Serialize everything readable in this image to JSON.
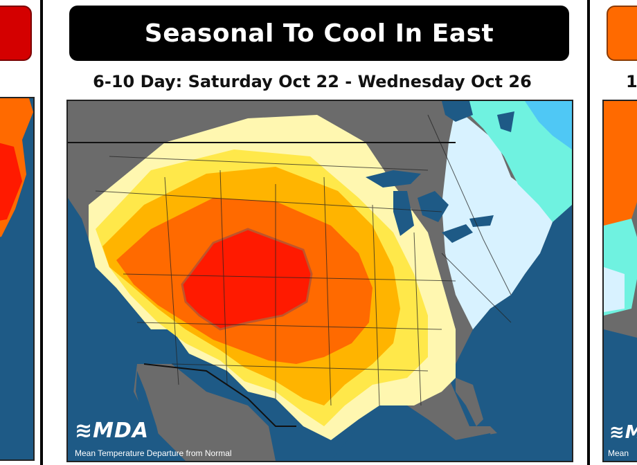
{
  "center_panel": {
    "title": "Seasonal To Cool In East",
    "subtitle": "6-10 Day: Saturday Oct 22 - Wednesday Oct 26",
    "logo_text": "MDA",
    "caption": "Mean Temperature Departure from Normal"
  },
  "left_panel": {
    "title_color": "#d40000"
  },
  "right_panel": {
    "subtitle_fragment": "1",
    "caption_fragment": "Mean",
    "logo_fragment": "M",
    "title_color": "#ff6a00"
  },
  "colors": {
    "ocean": "#1e5a86",
    "land_gray": "#6b6b6b",
    "warm_light_yellow": "#fff7b0",
    "warm_yellow": "#ffe84a",
    "warm_gold": "#ffb400",
    "warm_orange": "#ff6a00",
    "warm_red": "#ff1a00",
    "cool_light_blue": "#d8f2ff",
    "cool_aqua": "#6ff2e0",
    "cool_sky": "#4fc8f5"
  },
  "icons": [
    "mda-logo-swirl-icon"
  ]
}
